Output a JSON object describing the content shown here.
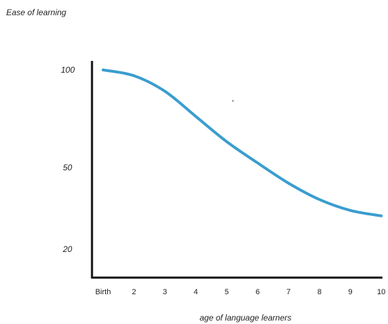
{
  "chart_data": {
    "type": "line",
    "ylabel": "Ease of learning",
    "xlabel": "age of language learners",
    "categories": [
      "Birth",
      "2",
      "3",
      "4",
      "5",
      "6",
      "7",
      "8",
      "9",
      "10"
    ],
    "y_ticks": [
      "100",
      "50",
      "20"
    ],
    "series": [
      {
        "color": "#3a9dcf",
        "x": [
          1,
          2,
          3,
          4,
          5,
          6,
          7,
          8,
          9,
          10
        ],
        "y": [
          100,
          97,
          89,
          76,
          63,
          52,
          44,
          38,
          34,
          32
        ]
      }
    ],
    "grid": false,
    "legend": "none",
    "stray_dot": {
      "x": 5.2,
      "y": 84
    }
  }
}
